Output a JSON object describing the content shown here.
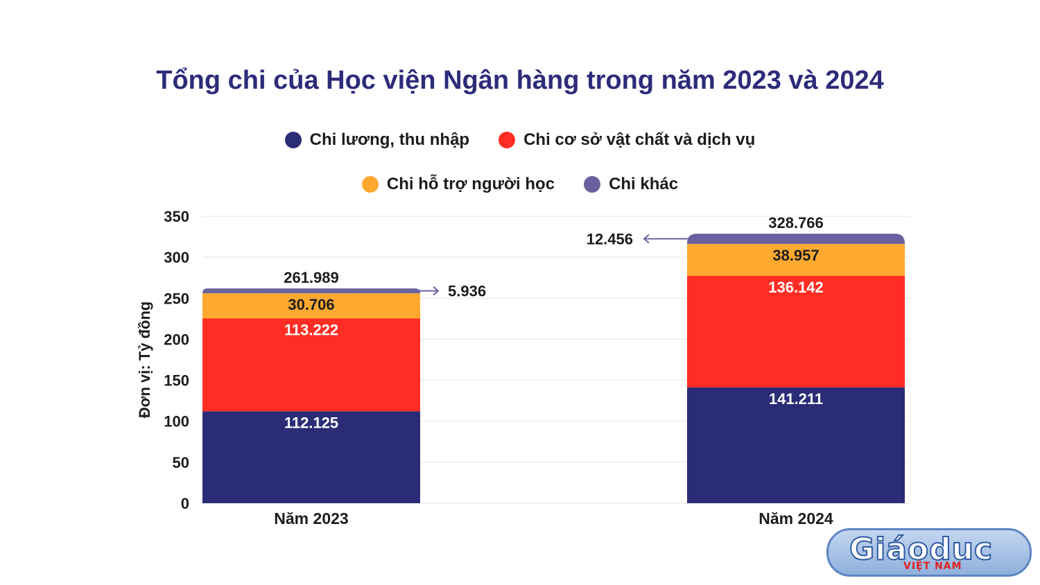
{
  "chart_data": {
    "type": "bar",
    "stacked": true,
    "title": "Tổng chi của Học viện Ngân hàng trong năm 2023 và 2024",
    "ylabel": "Đơn vị: Tỷ đồng",
    "xlabel": "",
    "ylim": [
      0,
      350
    ],
    "yticks": [
      "0",
      "50",
      "100",
      "150",
      "200",
      "250",
      "300",
      "350"
    ],
    "grid": true,
    "legend_position": "top",
    "categories": [
      "Năm 2023",
      "Năm 2024"
    ],
    "totals": [
      261.989,
      328.766
    ],
    "total_labels": [
      "261.989",
      "328.766"
    ],
    "series": [
      {
        "name": "Chi lương, thu nhập",
        "color": "#2b2c76",
        "values": [
          112.125,
          141.211
        ],
        "labels": [
          "112.125",
          "141.211"
        ]
      },
      {
        "name": "Chi cơ sở vật chất và dịch vụ",
        "color": "#ff2d24",
        "values": [
          113.222,
          136.142
        ],
        "labels": [
          "113.222",
          "136.142"
        ]
      },
      {
        "name": "Chi hỗ trợ người học",
        "color": "#ffa930",
        "values": [
          30.706,
          38.957
        ],
        "labels": [
          "30.706",
          "38.957"
        ]
      },
      {
        "name": "Chi khác",
        "color": "#6a629e",
        "values": [
          5.936,
          12.456
        ],
        "labels": [
          "5.936",
          "12.456"
        ]
      }
    ]
  },
  "watermark": {
    "main": "Giáoduc",
    "sub": "VIỆT NAM"
  }
}
